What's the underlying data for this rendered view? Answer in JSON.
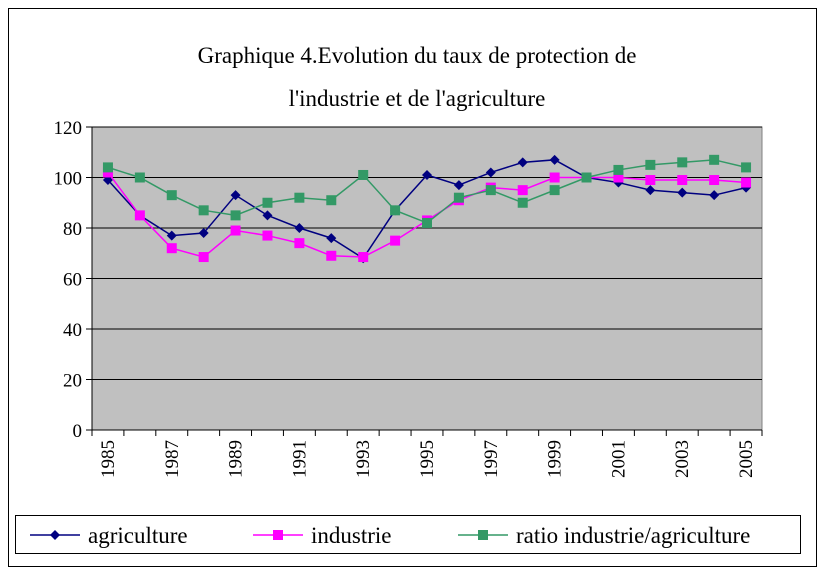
{
  "chart_data": {
    "type": "line",
    "title": [
      "Graphique 4.Evolution du taux de protection de",
      "l'industrie et de l'agriculture"
    ],
    "categories": [
      "1985",
      null,
      "1987",
      null,
      "1989",
      null,
      "1991",
      null,
      "1993",
      null,
      "1995",
      null,
      "1997",
      null,
      "1999",
      null,
      "2001",
      null,
      "2003",
      null,
      "2005"
    ],
    "series": [
      {
        "name": "agriculture",
        "color": "#000080",
        "marker": "diamond",
        "values": [
          99,
          85,
          77,
          78,
          93,
          85,
          80,
          76,
          68,
          87,
          101,
          97,
          102,
          106,
          107,
          100,
          98,
          95,
          94,
          93,
          96
        ]
      },
      {
        "name": "industrie",
        "color": "#ff00ff",
        "marker": "square",
        "values": [
          102,
          85,
          72,
          68.5,
          79,
          77,
          74,
          69,
          68.5,
          75,
          83,
          91,
          96,
          95,
          100,
          100,
          100,
          99,
          99,
          99,
          98
        ]
      },
      {
        "name": "ratio industrie/agriculture",
        "color": "#339966",
        "marker": "square",
        "values": [
          104,
          100,
          93,
          87,
          85,
          90,
          92,
          91,
          101,
          87,
          82,
          92,
          95,
          90,
          95,
          100,
          103,
          105,
          106,
          107,
          104
        ]
      }
    ],
    "ylim": [
      0,
      120
    ],
    "yticks": [
      0,
      20,
      40,
      60,
      80,
      100,
      120
    ],
    "grid": true,
    "legend": "bottom"
  }
}
